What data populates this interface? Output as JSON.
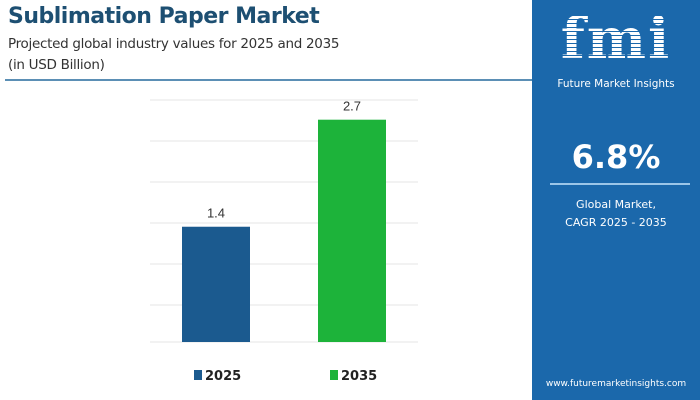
{
  "header": {
    "title": "Sublimation Paper Market",
    "subtitle_line1": "Projected global industry values for 2025 and 2035",
    "subtitle_line2": "(in USD Billion)"
  },
  "chart_data": {
    "type": "bar",
    "categories": [
      "2025",
      "2035"
    ],
    "values": [
      1.4,
      2.7
    ],
    "data_labels": [
      "1.4",
      "2.7"
    ],
    "colors": [
      "#1b5a8f",
      "#1db33a"
    ],
    "legend": [
      "2025",
      "2035"
    ],
    "legend_placement": "bottom",
    "ylim": [
      0,
      3
    ],
    "grid": true,
    "title": "",
    "xlabel": "",
    "ylabel": ""
  },
  "panel": {
    "logo": "fmi",
    "brand": "Future Market Insights",
    "cagr_value": "6.8%",
    "cagr_label_line1": "Global Market,",
    "cagr_label_line2": "CAGR 2025 - 2035",
    "url": "www.futuremarketinsights.com",
    "color": "#1b68ab"
  }
}
